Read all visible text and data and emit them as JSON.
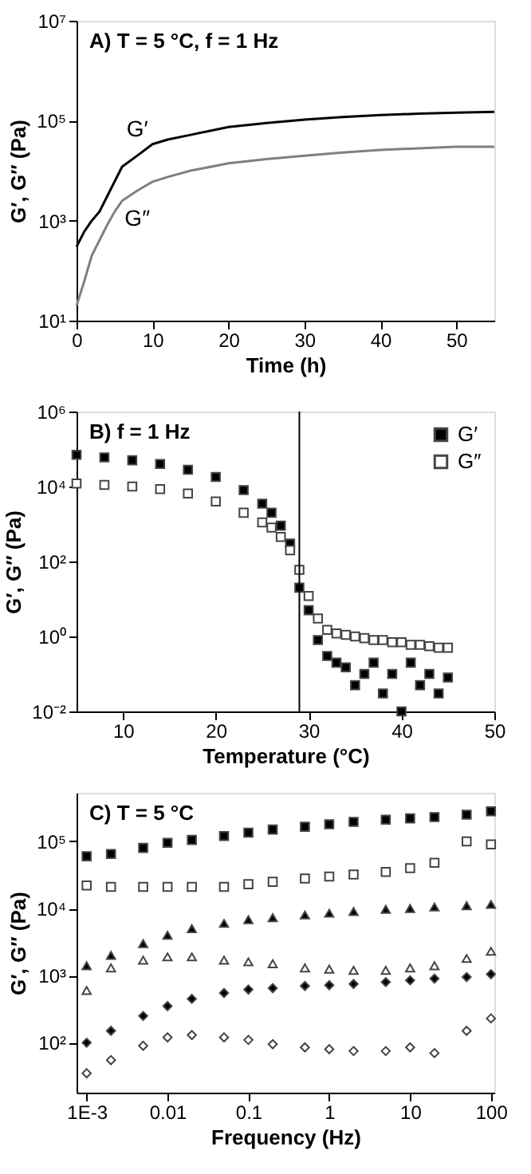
{
  "chart_data": [
    {
      "type": "line",
      "title": "A) T = 5 °C, f = 1 Hz",
      "xlabel": "Time (h)",
      "ylabel": "G′, G″ (Pa)",
      "log": "y",
      "grid": false,
      "legend": false,
      "x": [
        0,
        1,
        2,
        3,
        4,
        5,
        6,
        8,
        10,
        12,
        15,
        20,
        25,
        30,
        35,
        40,
        45,
        50,
        55
      ],
      "series": [
        {
          "name": "G′",
          "color": "#000000",
          "values": [
            300,
            600,
            1000,
            1500,
            3000,
            6000,
            12000,
            20000,
            34000,
            42000,
            52000,
            75000,
            90000,
            105000,
            118000,
            130000,
            138000,
            145000,
            150000
          ]
        },
        {
          "name": "G″",
          "color": "#808080",
          "values": [
            20,
            60,
            200,
            400,
            800,
            1500,
            2500,
            4000,
            6000,
            7500,
            10000,
            14000,
            17000,
            20000,
            23000,
            26000,
            28000,
            30000,
            30000
          ]
        }
      ],
      "xlim": [
        0,
        55
      ],
      "xticks": [
        0,
        10,
        20,
        30,
        40,
        50
      ],
      "ylim": [
        10,
        10000000
      ],
      "yticks": [
        {
          "value": 10,
          "label": "10¹"
        },
        {
          "value": 1000,
          "label": "10³"
        },
        {
          "value": 100000,
          "label": "10⁵"
        },
        {
          "value": 10000000,
          "label": "10⁷"
        }
      ]
    },
    {
      "type": "scatter",
      "title": "B) f = 1 Hz",
      "xlabel": "Temperature (°C)",
      "ylabel": "G′, G″ (Pa)",
      "log": "y",
      "grid": false,
      "legend": "top right",
      "marker": "square",
      "x": [
        5,
        8,
        11,
        14,
        17,
        20,
        23,
        25,
        26,
        27,
        28,
        29,
        30,
        31,
        32,
        33,
        34,
        35,
        36,
        37,
        38,
        39,
        40,
        41,
        42,
        43,
        44,
        45
      ],
      "series": [
        {
          "name": "G′",
          "color": "#000000",
          "values": [
            70000,
            60000,
            50000,
            40000,
            28000,
            18000,
            8000,
            3500,
            2000,
            900,
            300,
            20,
            5,
            0.8,
            0.3,
            0.2,
            0.15,
            0.05,
            0.1,
            0.2,
            0.03,
            0.1,
            0.01,
            0.2,
            0.05,
            0.1,
            0.03,
            0.08
          ]
        },
        {
          "name": "G″",
          "color": "#ffffff",
          "values": [
            12000,
            11000,
            10000,
            8500,
            6500,
            4000,
            2000,
            1100,
            800,
            450,
            200,
            60,
            12,
            3,
            1.5,
            1.2,
            1.1,
            1,
            0.9,
            0.8,
            0.8,
            0.7,
            0.7,
            0.6,
            0.6,
            0.55,
            0.5,
            0.5
          ]
        }
      ],
      "ref_lines": [
        {
          "axis": "x",
          "value": 29,
          "color": "#000000"
        }
      ],
      "xlim": [
        5,
        50
      ],
      "xticks": [
        10,
        20,
        30,
        40,
        50
      ],
      "ylim": [
        0.01,
        1000000
      ],
      "yticks": [
        {
          "value": 0.01,
          "label": "10⁻²"
        },
        {
          "value": 1,
          "label": "10⁰"
        },
        {
          "value": 100,
          "label": "10²"
        },
        {
          "value": 10000,
          "label": "10⁴"
        },
        {
          "value": 1000000,
          "label": "10⁶"
        }
      ]
    },
    {
      "type": "scatter",
      "title": "C) T = 5 °C",
      "xlabel": "Frequency (Hz)",
      "ylabel": "G′, G″ (Pa)",
      "log": "xy",
      "grid": false,
      "legend": false,
      "x": [
        0.001,
        0.002,
        0.005,
        0.01,
        0.02,
        0.05,
        0.1,
        0.2,
        0.5,
        1,
        2,
        5,
        10,
        20,
        50,
        100
      ],
      "series": [
        {
          "color": "#000000",
          "marker": "square",
          "values": [
            60000,
            65000,
            80000,
            95000,
            105000,
            120000,
            135000,
            150000,
            165000,
            180000,
            195000,
            210000,
            220000,
            230000,
            250000,
            280000
          ]
        },
        {
          "color": "#ffffff",
          "marker": "square",
          "values": [
            22000,
            21000,
            21000,
            21000,
            21000,
            21000,
            23000,
            25000,
            28000,
            30000,
            32000,
            35000,
            40000,
            48000,
            100000,
            90000
          ]
        },
        {
          "color": "#000000",
          "marker": "triangle",
          "values": [
            1400,
            2000,
            3000,
            4000,
            5000,
            6000,
            6800,
            7300,
            8000,
            8500,
            9000,
            9700,
            10000,
            10500,
            11000,
            11500
          ]
        },
        {
          "color": "#ffffff",
          "marker": "triangle",
          "values": [
            600,
            1300,
            1700,
            1900,
            1900,
            1700,
            1600,
            1500,
            1300,
            1250,
            1200,
            1200,
            1300,
            1400,
            1800,
            2300
          ]
        },
        {
          "color": "#000000",
          "marker": "diamond",
          "values": [
            100,
            150,
            250,
            350,
            450,
            550,
            620,
            650,
            700,
            720,
            750,
            800,
            850,
            900,
            950,
            1050
          ]
        },
        {
          "color": "#ffffff",
          "marker": "diamond",
          "values": [
            35,
            55,
            90,
            120,
            130,
            120,
            110,
            95,
            85,
            80,
            75,
            75,
            85,
            70,
            150,
            230
          ]
        }
      ],
      "xlim": [
        0.00075,
        110
      ],
      "xticks": [
        {
          "value": 0.001,
          "label": "1E-3"
        },
        0.01,
        0.1,
        1,
        10,
        100
      ],
      "ylim": [
        18,
        530000
      ],
      "yticks": [
        {
          "value": 100,
          "label": "10²"
        },
        {
          "value": 1000,
          "label": "10³"
        },
        {
          "value": 10000,
          "label": "10⁴"
        },
        {
          "value": 100000,
          "label": "10⁵"
        }
      ]
    }
  ]
}
